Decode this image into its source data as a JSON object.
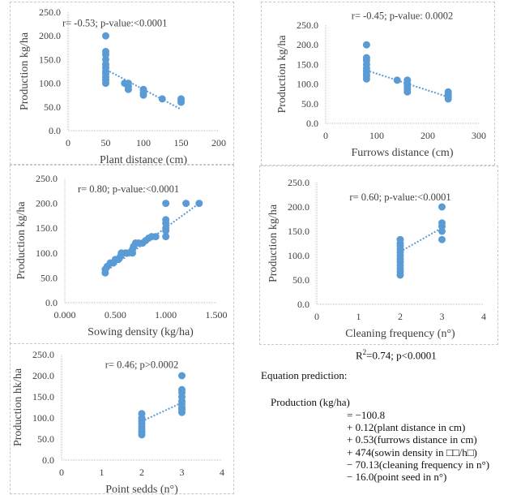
{
  "chart_data": [
    {
      "id": "plant",
      "type": "scatter",
      "title": "",
      "xlabel": "Plant distance (cm)",
      "ylabel": "Production kg/ha",
      "annotation": "r= -0.53; p-value:<0.0001",
      "xlim": [
        0,
        200
      ],
      "ylim": [
        0,
        250
      ],
      "xticks": [
        0,
        50,
        100,
        150,
        200
      ],
      "xtick_labels": [
        "0",
        "50",
        "100",
        "150",
        "200"
      ],
      "yticks": [
        0,
        50,
        100,
        150,
        200,
        250
      ],
      "ytick_labels": [
        "0.0",
        "50.0",
        "100.0",
        "150.0",
        "200.0",
        "250.0"
      ],
      "grid": false,
      "points": [
        [
          50,
          200
        ],
        [
          50,
          167
        ],
        [
          50,
          160
        ],
        [
          50,
          150
        ],
        [
          50,
          140
        ],
        [
          50,
          133
        ],
        [
          50,
          125
        ],
        [
          50,
          120
        ],
        [
          50,
          113
        ],
        [
          50,
          107
        ],
        [
          50,
          100
        ],
        [
          75,
          100
        ],
        [
          80,
          100
        ],
        [
          80,
          93
        ],
        [
          80,
          87
        ],
        [
          100,
          87
        ],
        [
          100,
          80
        ],
        [
          100,
          75
        ],
        [
          125,
          67
        ],
        [
          150,
          67
        ],
        [
          150,
          62
        ],
        [
          150,
          60
        ]
      ],
      "trendline": [
        [
          55,
          125
        ],
        [
          150,
          45
        ]
      ]
    },
    {
      "id": "furrows",
      "type": "scatter",
      "title": "",
      "xlabel": "Furrows distance (cm)",
      "ylabel": "Production kg/ha",
      "annotation": "r= -0.45; p-value: 0.0002",
      "xlim": [
        0,
        300
      ],
      "ylim": [
        0,
        250
      ],
      "xticks": [
        0,
        100,
        200,
        300
      ],
      "xtick_labels": [
        "0",
        "100",
        "200",
        "300"
      ],
      "yticks": [
        0,
        50,
        100,
        150,
        200,
        250
      ],
      "ytick_labels": [
        "0.0",
        "50.0",
        "100.0",
        "150.0",
        "200.0",
        "250.0"
      ],
      "grid": false,
      "points": [
        [
          80,
          200
        ],
        [
          80,
          167
        ],
        [
          80,
          160
        ],
        [
          80,
          150
        ],
        [
          80,
          140
        ],
        [
          80,
          133
        ],
        [
          80,
          125
        ],
        [
          80,
          120
        ],
        [
          80,
          113
        ],
        [
          140,
          110
        ],
        [
          160,
          110
        ],
        [
          160,
          100
        ],
        [
          160,
          93
        ],
        [
          160,
          87
        ],
        [
          160,
          80
        ],
        [
          240,
          80
        ],
        [
          240,
          73
        ],
        [
          240,
          67
        ],
        [
          240,
          62
        ]
      ],
      "trendline": [
        [
          80,
          135
        ],
        [
          240,
          67
        ]
      ]
    },
    {
      "id": "sowing",
      "type": "scatter",
      "title": "",
      "xlabel": "Sowing density (kg/ha)",
      "ylabel": "Production kg/ha",
      "annotation": "r= 0.80; p-value:<0.0001",
      "xlim": [
        0,
        1.5
      ],
      "ylim": [
        0,
        250
      ],
      "xticks": [
        0,
        0.5,
        1.0,
        1.5
      ],
      "xtick_labels": [
        "0.000",
        "0.500",
        "1.000",
        "1.500"
      ],
      "yticks": [
        0,
        50,
        100,
        150,
        200,
        250
      ],
      "ytick_labels": [
        "0.0",
        "50.0",
        "100.0",
        "150.0",
        "200.0",
        "250.0"
      ],
      "grid": false,
      "points": [
        [
          0.4,
          60
        ],
        [
          0.4,
          67
        ],
        [
          0.42,
          73
        ],
        [
          0.45,
          80
        ],
        [
          0.48,
          80
        ],
        [
          0.5,
          87
        ],
        [
          0.53,
          87
        ],
        [
          0.55,
          93
        ],
        [
          0.56,
          100
        ],
        [
          0.6,
          100
        ],
        [
          0.63,
          100
        ],
        [
          0.67,
          100
        ],
        [
          0.67,
          107
        ],
        [
          0.68,
          113
        ],
        [
          0.7,
          120
        ],
        [
          0.73,
          120
        ],
        [
          0.77,
          120
        ],
        [
          0.8,
          125
        ],
        [
          0.83,
          130
        ],
        [
          0.86,
          133
        ],
        [
          0.9,
          133
        ],
        [
          1.0,
          133
        ],
        [
          1.0,
          145
        ],
        [
          1.0,
          150
        ],
        [
          1.0,
          160
        ],
        [
          1.0,
          167
        ],
        [
          1.0,
          200
        ],
        [
          1.2,
          200
        ],
        [
          1.33,
          200
        ]
      ],
      "trendline": [
        [
          0.4,
          62
        ],
        [
          1.33,
          200
        ]
      ]
    },
    {
      "id": "cleaning",
      "type": "scatter",
      "title": "",
      "xlabel": "Cleaning frequency (n°)",
      "ylabel": "Production kg/ha",
      "annotation": "r= 0.60; p-value:<0.0001",
      "xlim": [
        0,
        4
      ],
      "ylim": [
        0,
        250
      ],
      "xticks": [
        0,
        1,
        2,
        3,
        4
      ],
      "xtick_labels": [
        "0",
        "1",
        "2",
        "3",
        "4"
      ],
      "yticks": [
        0,
        50,
        100,
        150,
        200,
        250
      ],
      "ytick_labels": [
        "0.0",
        "50.0",
        "100.0",
        "150.0",
        "200.0",
        "250.0"
      ],
      "grid": false,
      "points": [
        [
          2,
          133
        ],
        [
          2,
          125
        ],
        [
          2,
          120
        ],
        [
          2,
          113
        ],
        [
          2,
          107
        ],
        [
          2,
          100
        ],
        [
          2,
          93
        ],
        [
          2,
          87
        ],
        [
          2,
          80
        ],
        [
          2,
          73
        ],
        [
          2,
          67
        ],
        [
          2,
          60
        ],
        [
          3,
          200
        ],
        [
          3,
          167
        ],
        [
          3,
          160
        ],
        [
          3,
          150
        ],
        [
          3,
          133
        ]
      ],
      "trendline": [
        [
          2,
          108
        ],
        [
          3,
          157
        ]
      ]
    },
    {
      "id": "pointseeds",
      "type": "scatter",
      "title": "",
      "xlabel": "Point sedds (n°)",
      "ylabel": "Production hk/ha",
      "annotation": "r= 0.46; p>0.0002",
      "xlim": [
        0,
        4
      ],
      "ylim": [
        0,
        250
      ],
      "xticks": [
        0,
        1,
        2,
        3,
        4
      ],
      "xtick_labels": [
        "0",
        "1",
        "2",
        "3",
        "4"
      ],
      "yticks": [
        0,
        50,
        100,
        150,
        200,
        250
      ],
      "ytick_labels": [
        "0.0",
        "50.0",
        "100.0",
        "150.0",
        "200.0",
        "250.0"
      ],
      "grid": false,
      "points": [
        [
          2,
          110
        ],
        [
          2,
          100
        ],
        [
          2,
          93
        ],
        [
          2,
          87
        ],
        [
          2,
          80
        ],
        [
          2,
          73
        ],
        [
          2,
          67
        ],
        [
          2,
          60
        ],
        [
          3,
          200
        ],
        [
          3,
          167
        ],
        [
          3,
          160
        ],
        [
          3,
          150
        ],
        [
          3,
          140
        ],
        [
          3,
          133
        ],
        [
          3,
          125
        ],
        [
          3,
          120
        ],
        [
          3,
          113
        ]
      ],
      "trendline": [
        [
          2,
          92
        ],
        [
          3,
          136
        ]
      ]
    }
  ],
  "model": {
    "fit": "R",
    "fit_sup": "2",
    "fit_rest": "=0.74; p<0.0001",
    "equation_heading": "Equation prediction:",
    "lhs": "Production (kg/ha)",
    "terms": [
      "= −100.8",
      "+ 0.12(plant distance in cm)",
      "+ 0.53(furrows distance in cm)",
      "+ 474(sowin density in □□/h□)",
      "− 70.13(cleaning frequency in n°)",
      "− 16.0(point seed in n°)"
    ]
  },
  "colors": {
    "marker": "#5b9bd5",
    "axis": "#bfbfbf",
    "text": "#404040"
  }
}
